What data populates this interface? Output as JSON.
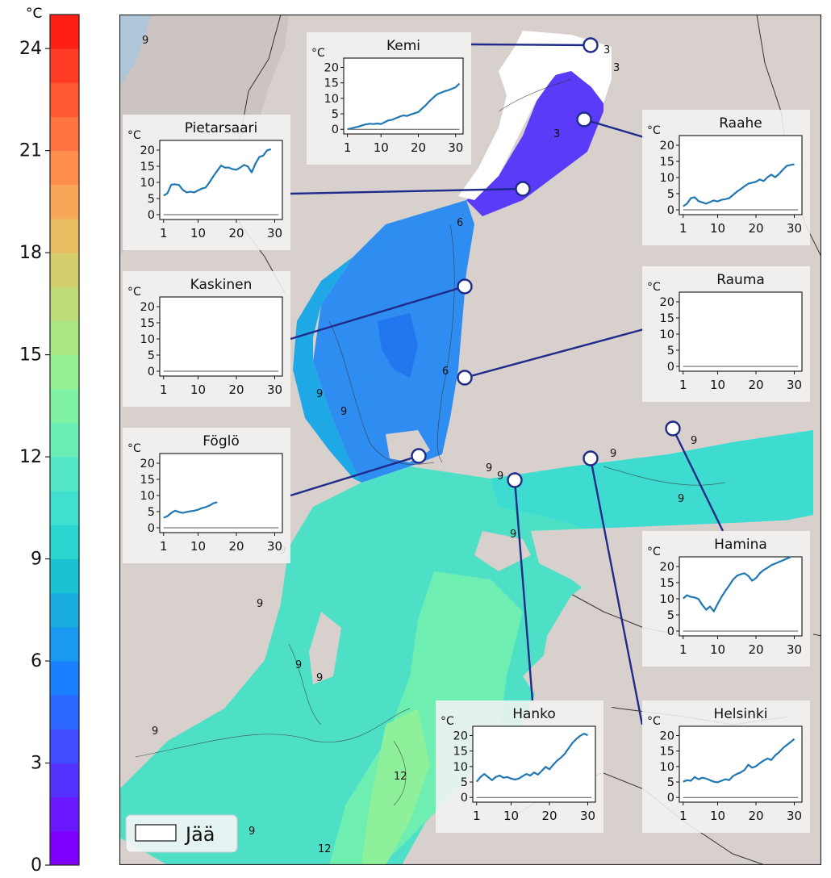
{
  "colorbar": {
    "unit": "°C",
    "min": 0,
    "max": 25,
    "ticks": [
      "0",
      "3",
      "6",
      "9",
      "12",
      "15",
      "18",
      "21",
      "24"
    ],
    "colors": [
      "#7f00ff",
      "#6a19ff",
      "#5533ff",
      "#404cff",
      "#2b66ff",
      "#1a80ff",
      "#1999f2",
      "#19ade0",
      "#19c2d0",
      "#2ad4cf",
      "#3fe0d0",
      "#55e8c8",
      "#6aeeb6",
      "#80f2a4",
      "#95f092",
      "#aae884",
      "#bfdc78",
      "#d4ce6c",
      "#eabc62",
      "#f8a658",
      "#ff8e4d",
      "#ff7440",
      "#ff5933",
      "#ff3d26",
      "#ff1f14"
    ]
  },
  "legend": {
    "ice_label": "Jää"
  },
  "contour_labels": [
    "9",
    "3",
    "3",
    "3",
    "6",
    "6",
    "9",
    "9",
    "9",
    "9",
    "9",
    "9",
    "9",
    "9",
    "9",
    "9",
    "9",
    "9",
    "9",
    "12",
    "12",
    "9"
  ],
  "colors": {
    "station_line": "#1f2a8a",
    "series_line": "#1f77b4",
    "ice": "#ffffff",
    "land": "#d7cfcc"
  },
  "insets": [
    {
      "name": "Kemi",
      "unit": "°C",
      "yticks": [
        "0",
        "5",
        "10",
        "15",
        "20"
      ],
      "ymax": 23,
      "xticks": [
        "1",
        "10",
        "20",
        "30"
      ],
      "series": [
        0,
        0.3,
        0.6,
        0.9,
        1.3,
        1.6,
        1.8,
        1.7,
        1.9,
        1.7,
        2.3,
        2.9,
        3.1,
        3.6,
        4.1,
        4.5,
        4.3,
        4.8,
        5.2,
        5.6,
        6.7,
        7.8,
        9.1,
        10.2,
        11.3,
        11.8,
        12.3,
        12.6,
        13.1,
        13.6,
        14.8
      ]
    },
    {
      "name": "Pietarsaari",
      "unit": "°C",
      "yticks": [
        "0",
        "5",
        "10",
        "15",
        "20"
      ],
      "ymax": 23,
      "xticks": [
        "1",
        "10",
        "20",
        "30"
      ],
      "series": [
        5.9,
        6.6,
        9.3,
        9.4,
        9.2,
        7.7,
        6.9,
        7.1,
        6.9,
        7.5,
        8.1,
        8.4,
        10.1,
        11.9,
        13.6,
        15.2,
        14.6,
        14.6,
        14.1,
        13.9,
        14.6,
        15.4,
        14.9,
        13.1,
        15.9,
        17.9,
        18.3,
        19.9,
        20.3
      ]
    },
    {
      "name": "Raahe",
      "unit": "°C",
      "yticks": [
        "0",
        "5",
        "10",
        "15",
        "20"
      ],
      "ymax": 23,
      "xticks": [
        "1",
        "10",
        "20",
        "30"
      ],
      "series": [
        1.1,
        1.9,
        3.6,
        3.9,
        2.7,
        2.3,
        1.9,
        2.4,
        2.9,
        2.6,
        3.1,
        3.3,
        3.6,
        4.6,
        5.6,
        6.4,
        7.3,
        8.1,
        8.4,
        8.7,
        9.4,
        8.9,
        10.1,
        10.9,
        10.1,
        11.1,
        12.4,
        13.6,
        13.9,
        14.1
      ]
    },
    {
      "name": "Kaskinen",
      "unit": "°C",
      "yticks": [
        "0",
        "5",
        "10",
        "15",
        "20"
      ],
      "ymax": 23,
      "xticks": [
        "1",
        "10",
        "20",
        "30"
      ],
      "series": []
    },
    {
      "name": "Rauma",
      "unit": "°C",
      "yticks": [
        "0",
        "5",
        "10",
        "15",
        "20"
      ],
      "ymax": 23,
      "xticks": [
        "1",
        "10",
        "20",
        "30"
      ],
      "series": []
    },
    {
      "name": "Föglö",
      "unit": "°C",
      "yticks": [
        "0",
        "5",
        "10",
        "15",
        "20"
      ],
      "ymax": 23,
      "xticks": [
        "1",
        "10",
        "20",
        "30"
      ],
      "series": [
        3.1,
        3.6,
        4.6,
        5.3,
        4.9,
        4.6,
        4.9,
        5.1,
        5.3,
        5.6,
        6.1,
        6.4,
        6.9,
        7.6,
        7.9
      ]
    },
    {
      "name": "Hamina",
      "unit": "°C",
      "yticks": [
        "0",
        "5",
        "10",
        "15",
        "20"
      ],
      "ymax": 23,
      "xticks": [
        "1",
        "10",
        "20",
        "30"
      ],
      "series": [
        10.1,
        11.1,
        10.6,
        10.4,
        9.9,
        8.1,
        6.6,
        7.6,
        6.1,
        8.4,
        10.6,
        12.4,
        14.1,
        15.9,
        17.1,
        17.6,
        17.9,
        17.1,
        15.6,
        16.4,
        17.9,
        18.9,
        19.6,
        20.4,
        20.9,
        21.4,
        21.9,
        22.4,
        22.9
      ]
    },
    {
      "name": "Hanko",
      "unit": "°C",
      "yticks": [
        "0",
        "5",
        "10",
        "15",
        "20"
      ],
      "ymax": 23,
      "xticks": [
        "1",
        "10",
        "20",
        "30"
      ],
      "series": [
        5.1,
        6.6,
        7.6,
        6.6,
        5.6,
        6.6,
        7.1,
        6.4,
        6.6,
        6.1,
        5.8,
        6.1,
        6.9,
        7.6,
        7.1,
        8.1,
        7.4,
        8.6,
        9.9,
        9.1,
        10.6,
        11.9,
        12.9,
        14.1,
        15.9,
        17.6,
        18.9,
        19.9,
        20.6,
        20.1
      ]
    },
    {
      "name": "Helsinki",
      "unit": "°C",
      "yticks": [
        "0",
        "5",
        "10",
        "15",
        "20"
      ],
      "ymax": 23,
      "xticks": [
        "1",
        "10",
        "20",
        "30"
      ],
      "series": [
        5.1,
        5.6,
        5.4,
        6.6,
        5.9,
        6.4,
        6.1,
        5.6,
        5.1,
        4.9,
        5.4,
        5.9,
        5.6,
        6.9,
        7.6,
        8.1,
        8.9,
        10.6,
        9.6,
        10.1,
        11.1,
        11.9,
        12.6,
        12.1,
        13.6,
        14.6,
        15.9,
        16.9,
        17.9,
        18.9
      ]
    }
  ]
}
